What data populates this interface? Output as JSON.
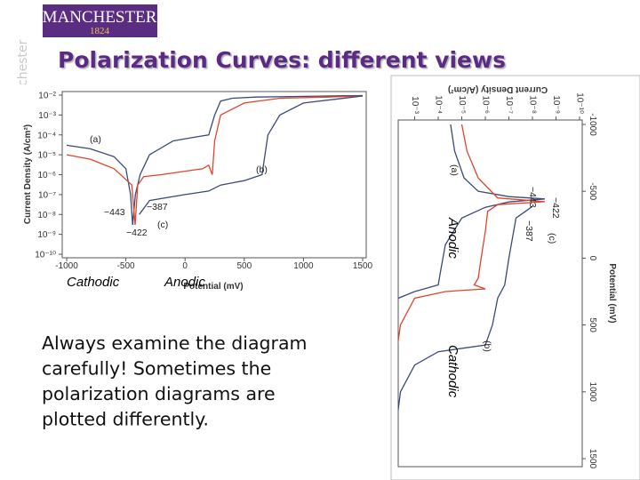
{
  "header": {
    "logo_name": "MANCHESTER",
    "logo_year": "1824",
    "side_text": "The University of Manchester",
    "title": "Polarization Curves: different views"
  },
  "overlay_labels": {
    "cathodic_left": "Cathodic",
    "anodic_left": "Anodic",
    "anodic_right": "Anodic",
    "cathodic_right": "Cathodic"
  },
  "body_text": [
    "Always examine the diagram",
    "carefully!  Sometimes the",
    "polarization diagrams are",
    "plotted differently."
  ],
  "figures": [
    {
      "type": "line",
      "orientation": "normal",
      "x_label": "Potential (mV)",
      "y_label": "Current Density (A/cm²)",
      "log_y": true,
      "xlim": [
        -1000,
        1500
      ],
      "ylim": [
        1e-10,
        0.01
      ],
      "xticks": [
        -1000,
        -500,
        0,
        500,
        1000,
        1500
      ],
      "yticks": [
        {
          "value": 0.01,
          "label": "10⁻²"
        },
        {
          "value": 0.001,
          "label": "10⁻³"
        },
        {
          "value": 0.0001,
          "label": "10⁻⁴"
        },
        {
          "value": 1e-05,
          "label": "10⁻⁵"
        },
        {
          "value": 1e-06,
          "label": "10⁻⁶"
        },
        {
          "value": 1e-07,
          "label": "10⁻⁷"
        },
        {
          "value": 1e-08,
          "label": "10⁻⁸"
        },
        {
          "value": 1e-09,
          "label": "10⁻⁹"
        },
        {
          "value": 1e-10,
          "label": "10⁻¹⁰"
        }
      ],
      "series": [
        {
          "color": "#3a4a7a",
          "x": [
            -1000,
            -800,
            -600,
            -500,
            -460,
            -443,
            -420,
            -380,
            -300,
            -100,
            100,
            200,
            250,
            300,
            400,
            600,
            900,
            1200,
            1500
          ],
          "values": [
            3e-05,
            2e-05,
            8e-06,
            2e-06,
            1e-07,
            3e-09,
            1e-07,
            1e-06,
            1e-05,
            5e-05,
            8e-05,
            0.0001,
            0.001,
            0.005,
            0.007,
            0.008,
            0.0085,
            0.009,
            0.0095
          ]
        },
        {
          "color": "#e0452c",
          "x": [
            -1000,
            -800,
            -600,
            -450,
            -422,
            -400,
            -350,
            -200,
            0,
            150,
            200,
            230,
            250,
            300,
            500,
            800,
            1200,
            1500
          ],
          "values": [
            1e-05,
            6e-06,
            2e-06,
            3e-07,
            3e-09,
            3e-07,
            8e-07,
            1e-06,
            1.5e-06,
            2e-06,
            3e-06,
            1e-06,
            5e-05,
            0.001,
            0.004,
            0.007,
            0.008,
            0.009
          ]
        },
        {
          "color": "#3a4a7a",
          "x": [
            -387,
            -300,
            0,
            200,
            300,
            500,
            650,
            700,
            800,
            1000,
            1500
          ],
          "values": [
            1e-08,
            5e-08,
            1e-07,
            1.5e-07,
            3e-07,
            5e-07,
            1e-06,
            0.0001,
            0.001,
            0.004,
            0.009
          ]
        }
      ],
      "annotations": [
        "(a)",
        "(b)",
        "(c)",
        "−443",
        "−387",
        "−422"
      ]
    },
    {
      "type": "line",
      "orientation": "rotated",
      "x_label": "Potential (mV)",
      "y_label": "Current Density (A/cm²)",
      "log_y": true,
      "xlim": [
        -1000,
        1500
      ],
      "ylim": [
        1e-10,
        0.01
      ],
      "xticks": [
        -1000,
        -500,
        0,
        500,
        1000,
        1500
      ],
      "yticks": [
        {
          "value": 0.001,
          "label": "10⁻³"
        },
        {
          "value": 0.0001,
          "label": "10⁻⁴"
        },
        {
          "value": 1e-05,
          "label": "10⁻⁵"
        },
        {
          "value": 1e-06,
          "label": "10⁻⁶"
        },
        {
          "value": 1e-07,
          "label": "10⁻⁷"
        },
        {
          "value": 1e-08,
          "label": "10⁻⁸"
        },
        {
          "value": 1e-09,
          "label": "10⁻⁹"
        },
        {
          "value": 1e-10,
          "label": "10⁻¹⁰"
        }
      ],
      "series": [
        {
          "color": "#3a4a7a",
          "x": [
            -1000,
            -800,
            -600,
            -500,
            -460,
            -443,
            -420,
            -380,
            -300,
            -100,
            100,
            200,
            250,
            300,
            400,
            600,
            900,
            1200,
            1500
          ],
          "values": [
            3e-05,
            2e-05,
            8e-06,
            2e-06,
            1e-07,
            3e-09,
            1e-07,
            1e-06,
            1e-05,
            5e-05,
            8e-05,
            0.0001,
            0.001,
            0.005,
            0.007,
            0.008,
            0.0085,
            0.009,
            0.0095
          ]
        },
        {
          "color": "#e0452c",
          "x": [
            -1000,
            -800,
            -600,
            -450,
            -422,
            -400,
            -350,
            -200,
            0,
            150,
            200,
            230,
            250,
            300,
            500,
            800,
            1200,
            1500
          ],
          "values": [
            1e-05,
            6e-06,
            2e-06,
            3e-07,
            3e-09,
            3e-07,
            8e-07,
            1e-06,
            1.5e-06,
            2e-06,
            3e-06,
            1e-06,
            5e-05,
            0.001,
            0.004,
            0.007,
            0.008,
            0.009
          ]
        },
        {
          "color": "#3a4a7a",
          "x": [
            -387,
            -300,
            0,
            200,
            300,
            500,
            650,
            700,
            800,
            1000,
            1500
          ],
          "values": [
            1e-08,
            5e-08,
            1e-07,
            1.5e-07,
            3e-07,
            5e-07,
            1e-06,
            0.0001,
            0.001,
            0.004,
            0.009
          ]
        }
      ],
      "annotations": [
        "(a)",
        "(b)",
        "(c)",
        "−443",
        "−387",
        "−422"
      ]
    }
  ]
}
